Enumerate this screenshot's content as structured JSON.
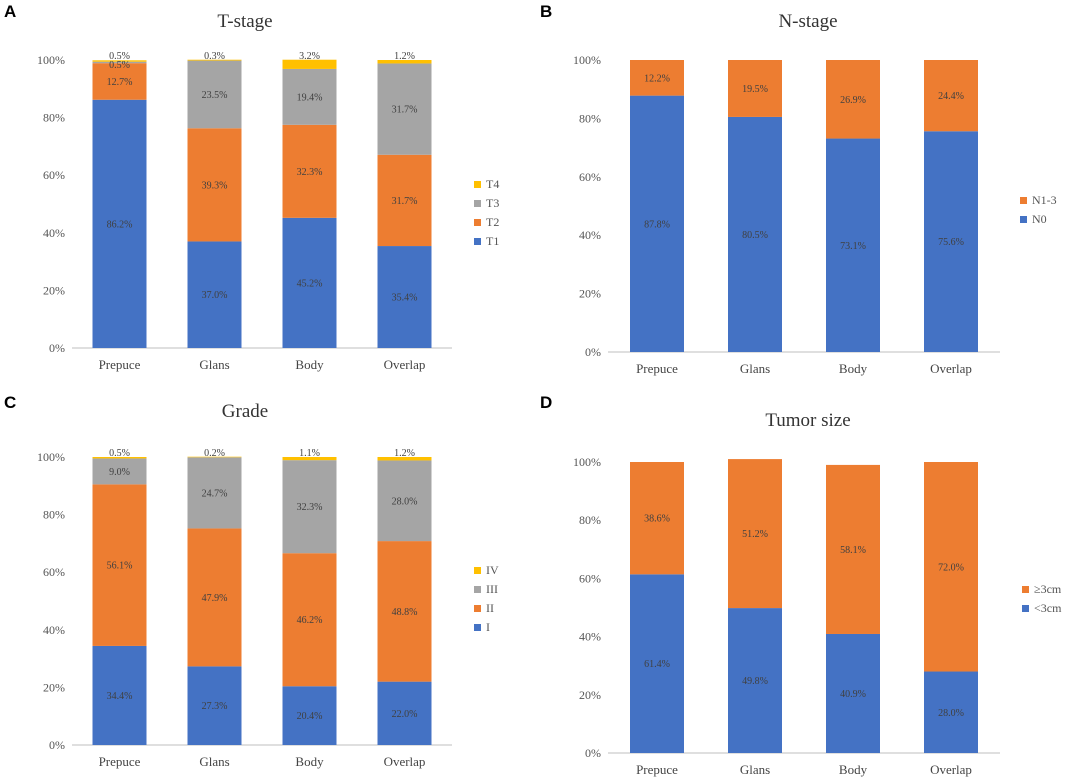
{
  "chart_data": [
    {
      "panel": "A",
      "type": "bar",
      "stacked": true,
      "title": "T-stage",
      "categories": [
        "Prepuce",
        "Glans",
        "Body",
        "Overlap"
      ],
      "series": [
        {
          "name": "T1",
          "color": "#4472C4",
          "values": [
            86.2,
            37.0,
            45.2,
            35.4
          ]
        },
        {
          "name": "T2",
          "color": "#ED7D31",
          "values": [
            12.7,
            39.3,
            32.3,
            31.7
          ]
        },
        {
          "name": "T3",
          "color": "#A5A5A5",
          "values": [
            0.5,
            23.5,
            19.4,
            31.7
          ]
        },
        {
          "name": "T4",
          "color": "#FFC000",
          "values": [
            0.5,
            0.3,
            3.2,
            1.2
          ]
        }
      ],
      "data_labels": [
        [
          "86.2%",
          "37.0%",
          "45.2%",
          "35.4%"
        ],
        [
          "12.7%",
          "39.3%",
          "32.3%",
          "31.7%"
        ],
        [
          "0.5%",
          "23.5%",
          "19.4%",
          "31.7%"
        ],
        [
          "0.5%",
          "0.3%",
          "3.2%",
          "1.2%"
        ]
      ],
      "yticks": [
        "0%",
        "20%",
        "40%",
        "60%",
        "80%",
        "100%"
      ],
      "ylim": [
        0,
        100
      ],
      "legend": "right"
    },
    {
      "panel": "B",
      "type": "bar",
      "stacked": true,
      "title": "N-stage",
      "categories": [
        "Prepuce",
        "Glans",
        "Body",
        "Overlap"
      ],
      "series": [
        {
          "name": "N0",
          "color": "#4472C4",
          "values": [
            87.8,
            80.5,
            73.1,
            75.6
          ]
        },
        {
          "name": "N1-3",
          "color": "#ED7D31",
          "values": [
            12.2,
            19.5,
            26.9,
            24.4
          ]
        }
      ],
      "data_labels": [
        [
          "87.8%",
          "80.5%",
          "73.1%",
          "75.6%"
        ],
        [
          "12.2%",
          "19.5%",
          "26.9%",
          "24.4%"
        ]
      ],
      "yticks": [
        "0%",
        "20%",
        "40%",
        "60%",
        "80%",
        "100%"
      ],
      "ylim": [
        0,
        100
      ],
      "legend": "right"
    },
    {
      "panel": "C",
      "type": "bar",
      "stacked": true,
      "title": "Grade",
      "categories": [
        "Prepuce",
        "Glans",
        "Body",
        "Overlap"
      ],
      "series": [
        {
          "name": "I",
          "color": "#4472C4",
          "values": [
            34.4,
            27.3,
            20.4,
            22.0
          ]
        },
        {
          "name": "II",
          "color": "#ED7D31",
          "values": [
            56.1,
            47.9,
            46.2,
            48.8
          ]
        },
        {
          "name": "III",
          "color": "#A5A5A5",
          "values": [
            9.0,
            24.7,
            32.3,
            28.0
          ]
        },
        {
          "name": "IV",
          "color": "#FFC000",
          "values": [
            0.5,
            0.2,
            1.1,
            1.2
          ]
        }
      ],
      "data_labels": [
        [
          "34.4%",
          "27.3%",
          "20.4%",
          "22.0%"
        ],
        [
          "56.1%",
          "47.9%",
          "46.2%",
          "48.8%"
        ],
        [
          "9.0%",
          "24.7%",
          "32.3%",
          "28.0%"
        ],
        [
          "0.5%",
          "0.2%",
          "1.1%",
          "1.2%"
        ]
      ],
      "yticks": [
        "0%",
        "20%",
        "40%",
        "60%",
        "80%",
        "100%"
      ],
      "ylim": [
        0,
        100
      ],
      "legend": "right"
    },
    {
      "panel": "D",
      "type": "bar",
      "stacked": true,
      "title": "Tumor size",
      "categories": [
        "Prepuce",
        "Glans",
        "Body",
        "Overlap"
      ],
      "series": [
        {
          "name": "<3cm",
          "color": "#4472C4",
          "values": [
            61.4,
            49.8,
            40.9,
            28.0
          ]
        },
        {
          "name": "≥3cm",
          "color": "#ED7D31",
          "values": [
            38.6,
            51.2,
            58.1,
            72.0
          ]
        }
      ],
      "data_labels": [
        [
          "61.4%",
          "49.8%",
          "40.9%",
          "28.0%"
        ],
        [
          "38.6%",
          "51.2%",
          "58.1%",
          "72.0%"
        ]
      ],
      "yticks": [
        "0%",
        "20%",
        "40%",
        "60%",
        "80%",
        "100%"
      ],
      "ylim": [
        0,
        100
      ],
      "legend": "right"
    }
  ]
}
